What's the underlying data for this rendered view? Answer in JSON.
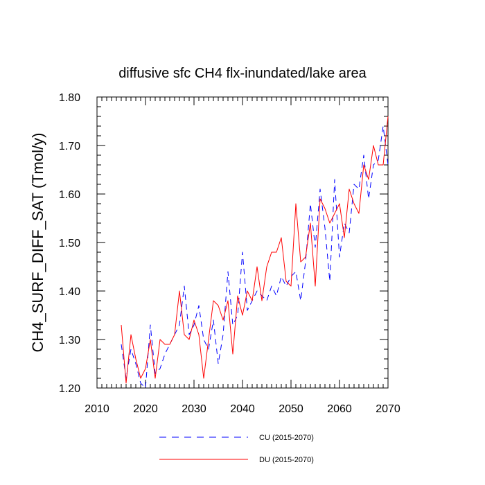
{
  "chart_data": {
    "type": "line",
    "title": "diffusive sfc CH4 flx-inundated/lake area",
    "xlabel": "",
    "ylabel": "CH4_SURF_DIFF_SAT  (Tmol/y)",
    "xlim": [
      2010,
      2070
    ],
    "ylim": [
      1.2,
      1.8
    ],
    "x_major_ticks": [
      2010,
      2020,
      2030,
      2040,
      2050,
      2060,
      2070
    ],
    "x_tick_labels": [
      "2010",
      "2020",
      "2030",
      "2040",
      "2050",
      "2060",
      "2070"
    ],
    "y_major_ticks": [
      1.2,
      1.3,
      1.4,
      1.5,
      1.6,
      1.7,
      1.8
    ],
    "y_tick_labels": [
      "1.20",
      "1.30",
      "1.40",
      "1.50",
      "1.60",
      "1.70",
      "1.80"
    ],
    "grid": false,
    "legend_position": "bottom-center",
    "x": [
      2015,
      2016,
      2017,
      2018,
      2019,
      2020,
      2021,
      2022,
      2023,
      2024,
      2025,
      2026,
      2027,
      2028,
      2029,
      2030,
      2031,
      2032,
      2033,
      2034,
      2035,
      2036,
      2037,
      2038,
      2039,
      2040,
      2041,
      2042,
      2043,
      2044,
      2045,
      2046,
      2047,
      2048,
      2049,
      2050,
      2051,
      2052,
      2053,
      2054,
      2055,
      2056,
      2057,
      2058,
      2059,
      2060,
      2061,
      2062,
      2063,
      2064,
      2065,
      2066,
      2067,
      2068,
      2069,
      2070
    ],
    "series": [
      {
        "name": "CU (2015-2070)",
        "style": "dashed",
        "color": "#0000ff",
        "values": [
          1.29,
          1.22,
          1.28,
          1.25,
          1.21,
          1.2,
          1.33,
          1.23,
          1.24,
          1.27,
          1.29,
          1.31,
          1.33,
          1.41,
          1.31,
          1.33,
          1.37,
          1.3,
          1.28,
          1.34,
          1.25,
          1.31,
          1.44,
          1.33,
          1.35,
          1.48,
          1.36,
          1.38,
          1.4,
          1.39,
          1.38,
          1.41,
          1.39,
          1.43,
          1.41,
          1.43,
          1.44,
          1.38,
          1.46,
          1.58,
          1.49,
          1.61,
          1.53,
          1.42,
          1.63,
          1.47,
          1.54,
          1.52,
          1.62,
          1.61,
          1.68,
          1.59,
          1.66,
          1.67,
          1.74,
          1.66
        ]
      },
      {
        "name": "DU (2015-2070)",
        "style": "solid",
        "color": "#ff0000",
        "values": [
          1.33,
          1.21,
          1.31,
          1.26,
          1.22,
          1.24,
          1.3,
          1.22,
          1.3,
          1.29,
          1.29,
          1.31,
          1.4,
          1.31,
          1.3,
          1.34,
          1.31,
          1.22,
          1.3,
          1.38,
          1.37,
          1.34,
          1.38,
          1.27,
          1.39,
          1.35,
          1.4,
          1.38,
          1.45,
          1.38,
          1.45,
          1.48,
          1.48,
          1.51,
          1.42,
          1.41,
          1.58,
          1.46,
          1.47,
          1.54,
          1.41,
          1.59,
          1.57,
          1.54,
          1.56,
          1.58,
          1.51,
          1.61,
          1.58,
          1.56,
          1.66,
          1.63,
          1.7,
          1.66,
          1.66,
          1.76
        ]
      }
    ]
  }
}
